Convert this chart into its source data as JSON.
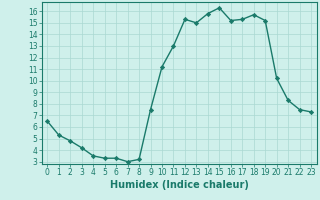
{
  "x": [
    0,
    1,
    2,
    3,
    4,
    5,
    6,
    7,
    8,
    9,
    10,
    11,
    12,
    13,
    14,
    15,
    16,
    17,
    18,
    19,
    20,
    21,
    22,
    23
  ],
  "y": [
    6.5,
    5.3,
    4.8,
    4.2,
    3.5,
    3.3,
    3.3,
    3.0,
    3.2,
    7.5,
    11.2,
    13.0,
    15.3,
    15.0,
    15.8,
    16.3,
    15.2,
    15.3,
    15.7,
    15.2,
    10.2,
    8.3,
    7.5,
    7.3
  ],
  "line_color": "#1a7a6a",
  "marker": "D",
  "marker_size": 2.2,
  "line_width": 1.0,
  "bg_color": "#cff0eb",
  "grid_color": "#aad8d2",
  "xlabel": "Humidex (Indice chaleur)",
  "xlim": [
    -0.5,
    23.5
  ],
  "ylim": [
    2.8,
    16.8
  ],
  "yticks": [
    3,
    4,
    5,
    6,
    7,
    8,
    9,
    10,
    11,
    12,
    13,
    14,
    15,
    16
  ],
  "xticks": [
    0,
    1,
    2,
    3,
    4,
    5,
    6,
    7,
    8,
    9,
    10,
    11,
    12,
    13,
    14,
    15,
    16,
    17,
    18,
    19,
    20,
    21,
    22,
    23
  ],
  "tick_fontsize": 5.5,
  "xlabel_fontsize": 7.0,
  "axis_color": "#1a7a6a",
  "spine_color": "#1a7a6a"
}
